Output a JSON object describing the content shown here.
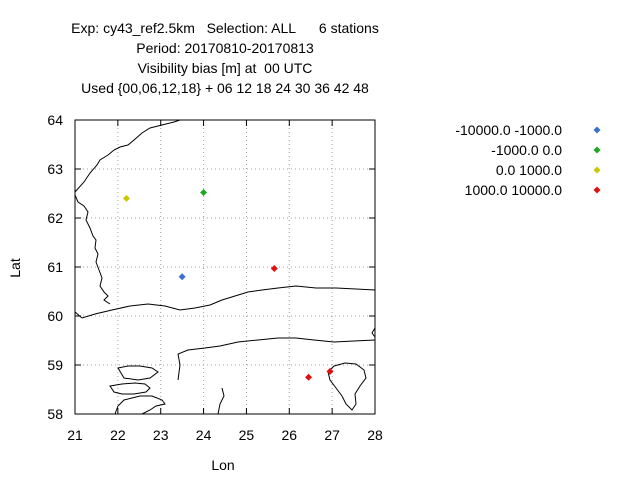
{
  "chart_data": {
    "type": "scatter",
    "title_lines": [
      "Exp: cy43_ref2.5km   Selection: ALL      6 stations",
      "Period: 20170810-20170813",
      "Visibility bias [m] at  00 UTC",
      "Used {00,06,12,18} + 06 12 18 24 30 36 42 48"
    ],
    "xlabel": "Lon",
    "ylabel": "Lat",
    "xlim": [
      21,
      28
    ],
    "ylim": [
      58,
      64
    ],
    "xticks": [
      21,
      22,
      23,
      24,
      25,
      26,
      27,
      28
    ],
    "yticks": [
      58,
      59,
      60,
      61,
      62,
      63,
      64
    ],
    "grid": true,
    "legend_placement": "right",
    "series": [
      {
        "name": "-10000.0 -1000.0",
        "color": "#3b6fd4",
        "points": [
          {
            "x": 23.5,
            "y": 60.8
          }
        ]
      },
      {
        "name": "-1000.0 0.0",
        "color": "#1fa81f",
        "points": [
          {
            "x": 24.0,
            "y": 62.52
          }
        ]
      },
      {
        "name": "0.0 1000.0",
        "color": "#c8c800",
        "points": [
          {
            "x": 22.2,
            "y": 62.4
          }
        ]
      },
      {
        "name": "1000.0 10000.0",
        "color": "#e01010",
        "points": [
          {
            "x": 25.65,
            "y": 60.97
          },
          {
            "x": 26.45,
            "y": 58.75
          },
          {
            "x": 26.95,
            "y": 58.87
          }
        ]
      }
    ]
  }
}
